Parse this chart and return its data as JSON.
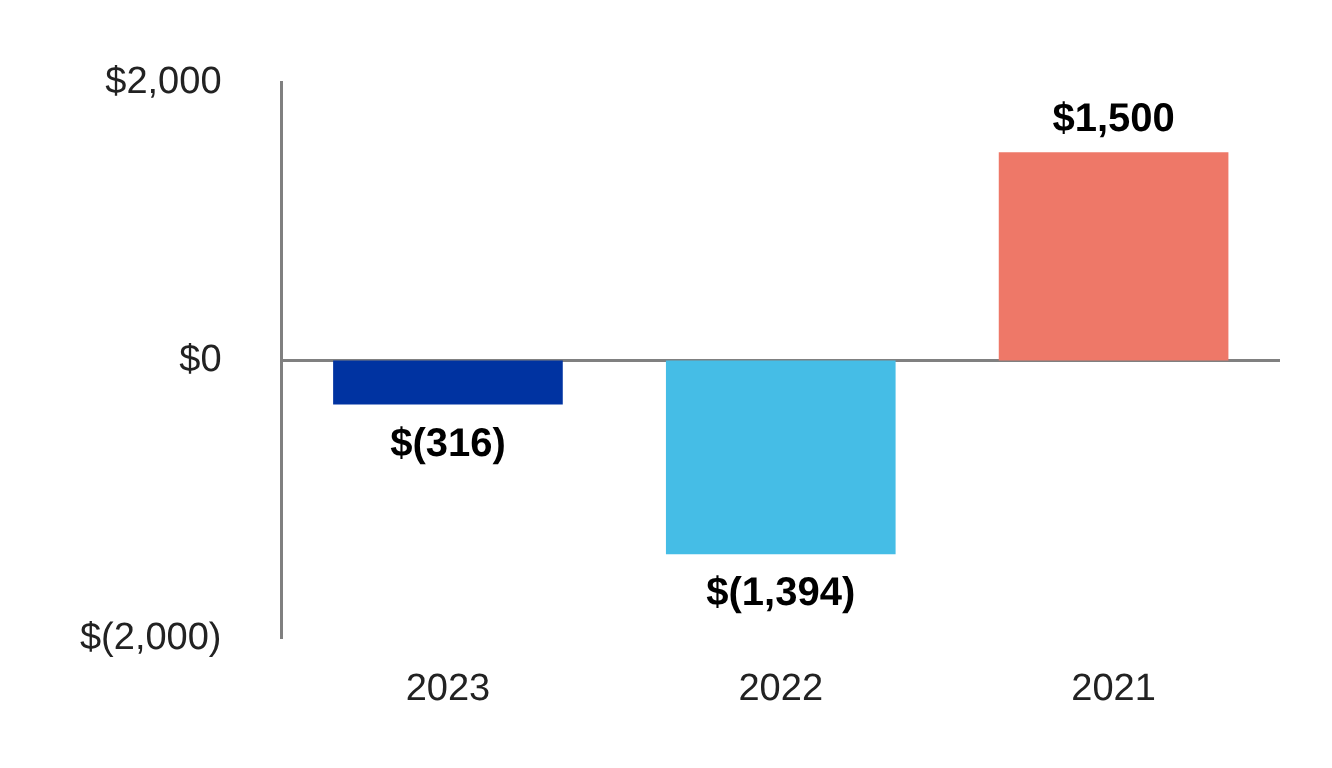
{
  "chart_data": {
    "type": "bar",
    "categories": [
      "2023",
      "2022",
      "2021"
    ],
    "values": [
      -316,
      -1394,
      1500
    ],
    "colors": [
      "#0033a1",
      "#45bde6",
      "#ee7868"
    ],
    "value_labels": [
      "$(316)",
      "$(1,394)",
      "$1,500"
    ],
    "ylim": [
      -2000,
      2000
    ],
    "yticks": [
      {
        "value": -2000,
        "label": "$(2,000)"
      },
      {
        "value": 0,
        "label": "$0"
      },
      {
        "value": 2000,
        "label": "$2,000"
      }
    ],
    "ref_lines": [
      {
        "axis": "y",
        "value": 0,
        "color": "#808080"
      }
    ],
    "grid": false,
    "legend": false
  }
}
